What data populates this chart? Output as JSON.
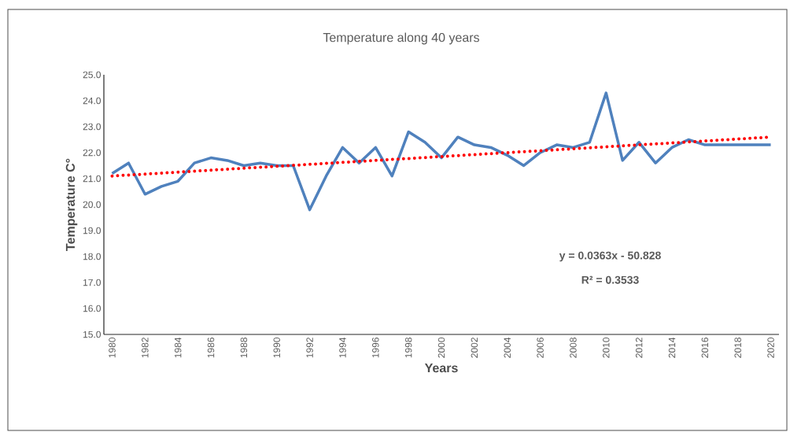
{
  "chart_data": {
    "type": "line",
    "title": "Temperature along 40 years",
    "xlabel": "Years",
    "ylabel": "Temperature C°",
    "xlim": [
      1979.5,
      2020.5
    ],
    "ylim": [
      15,
      25
    ],
    "xticks": [
      1980,
      1982,
      1984,
      1986,
      1988,
      1990,
      1992,
      1994,
      1996,
      1998,
      2000,
      2002,
      2004,
      2006,
      2008,
      2010,
      2012,
      2014,
      2016,
      2018,
      2020
    ],
    "yticks": [
      {
        "value": 15,
        "label": "15.0"
      },
      {
        "value": 16,
        "label": "16.0"
      },
      {
        "value": 17,
        "label": "17.0"
      },
      {
        "value": 18,
        "label": "18.0"
      },
      {
        "value": 19,
        "label": "19.0"
      },
      {
        "value": 20,
        "label": "20.0"
      },
      {
        "value": 21,
        "label": "21.0"
      },
      {
        "value": 22,
        "label": "22.0"
      },
      {
        "value": 23,
        "label": "23.0"
      },
      {
        "value": 24,
        "label": "24.0"
      },
      {
        "value": 25,
        "label": "25.0"
      }
    ],
    "x": [
      1980,
      1981,
      1982,
      1983,
      1984,
      1985,
      1986,
      1987,
      1988,
      1989,
      1990,
      1991,
      1992,
      1993,
      1994,
      1995,
      1996,
      1997,
      1998,
      1999,
      2000,
      2001,
      2002,
      2003,
      2004,
      2005,
      2006,
      2007,
      2008,
      2009,
      2010,
      2011,
      2012,
      2013,
      2014,
      2015,
      2016,
      2017,
      2018,
      2019,
      2020
    ],
    "grid": false,
    "series": [
      {
        "color": "#4f81bd",
        "line_style": "solid",
        "values": [
          21.2,
          21.6,
          20.4,
          20.7,
          20.9,
          21.6,
          21.8,
          21.7,
          21.5,
          21.6,
          21.5,
          21.5,
          19.8,
          21.1,
          22.2,
          21.6,
          22.2,
          21.1,
          22.8,
          22.4,
          21.8,
          22.6,
          22.3,
          22.2,
          21.9,
          21.5,
          22.0,
          22.3,
          22.2,
          22.4,
          24.3,
          21.7,
          22.4,
          21.6,
          22.2,
          22.5,
          22.3,
          22.3,
          22.3,
          22.3,
          22.3
        ]
      },
      {
        "type": "line",
        "color": "#ff0000",
        "line_style": "dotted",
        "x": [
          1980,
          2020
        ],
        "values": [
          21.1,
          22.6
        ]
      }
    ],
    "annotations": [
      "y = 0.0363x - 50.828",
      "R² = 0.3533"
    ]
  }
}
